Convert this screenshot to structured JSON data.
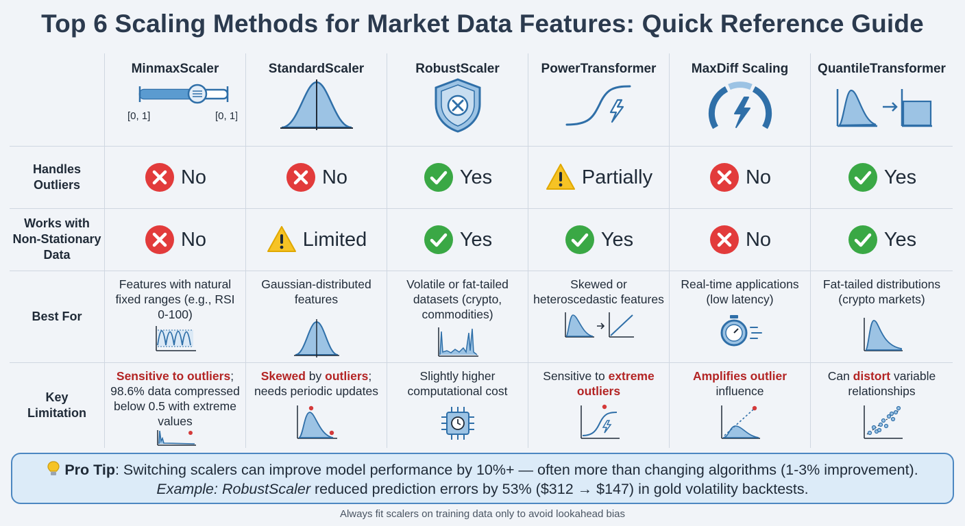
{
  "title": "Top 6 Scaling Methods for Market Data Features: Quick Reference Guide",
  "colors": {
    "accent_blue": "#2f6fa8",
    "fill_blue": "#9cc3e4",
    "no_red": "#e23b3b",
    "yes_green": "#3aa845",
    "warn_yellow": "#f6c325",
    "highlight_red": "#b32424"
  },
  "row_labels": {
    "handles_outliers": "Handles\nOutliers",
    "non_stationary": "Works with\nNon-Stationary\nData",
    "best_for": "Best For",
    "limitation": "Key\nLimitation"
  },
  "scalers": [
    {
      "name": "MinmaxScaler",
      "icon": "slider-icon",
      "icon_labels": [
        "[0, 1]",
        "[0, 1]"
      ],
      "outliers": {
        "status": "no",
        "text": "No"
      },
      "nonstationary": {
        "status": "no",
        "text": "No"
      },
      "best_for": "Features with natural fixed ranges (e.g., RSI 0-100)",
      "best_icon": "oscillator-chart-icon",
      "limitation": {
        "pre": "",
        "red1": "Sensitive to outliers",
        "mid": "; 98.6% data compressed below 0.5 with extreme values",
        "red2": "",
        "post": ""
      },
      "limit_icon": "compressed-spike-chart-icon"
    },
    {
      "name": "StandardScaler",
      "icon": "bell-curve-icon",
      "outliers": {
        "status": "no",
        "text": "No"
      },
      "nonstationary": {
        "status": "warn",
        "text": "Limited"
      },
      "best_for": "Gaussian-distributed features",
      "best_icon": "bell-curve-icon",
      "limitation": {
        "pre": "",
        "red1": "Skewed",
        "mid": " by ",
        "red2": "outliers",
        "post": "; needs periodic updates"
      },
      "limit_icon": "skewed-curve-outlier-icon"
    },
    {
      "name": "RobustScaler",
      "icon": "shield-icon",
      "outliers": {
        "status": "yes",
        "text": "Yes"
      },
      "nonstationary": {
        "status": "yes",
        "text": "Yes"
      },
      "best_for": "Volatile or fat-tailed datasets (crypto, commodities)",
      "best_icon": "volatile-spike-chart-icon",
      "limitation": {
        "pre": "Slightly higher computational cost",
        "red1": "",
        "mid": "",
        "red2": "",
        "post": ""
      },
      "limit_icon": "cpu-chip-icon"
    },
    {
      "name": "PowerTransformer",
      "icon": "s-curve-lightning-icon",
      "outliers": {
        "status": "warn",
        "text": "Partially"
      },
      "nonstationary": {
        "status": "yes",
        "text": "Yes"
      },
      "best_for": "Skewed or heteroscedastic features",
      "best_icon": "skew-to-linear-icon",
      "limitation": {
        "pre": "Sensitive to ",
        "red1": "extreme outliers",
        "mid": "",
        "red2": "",
        "post": ""
      },
      "limit_icon": "s-curve-outlier-icon"
    },
    {
      "name": "MaxDiff Scaling",
      "icon": "speedometer-icon",
      "outliers": {
        "status": "no",
        "text": "No"
      },
      "nonstationary": {
        "status": "no",
        "text": "No"
      },
      "best_for": "Real-time applications (low latency)",
      "best_icon": "stopwatch-icon",
      "limitation": {
        "pre": "",
        "red1": "Amplifies outlier",
        "mid": " influence",
        "red2": "",
        "post": ""
      },
      "limit_icon": "amplified-outlier-icon"
    },
    {
      "name": "QuantileTransformer",
      "icon": "distribution-to-uniform-icon",
      "outliers": {
        "status": "yes",
        "text": "Yes"
      },
      "nonstationary": {
        "status": "yes",
        "text": "Yes"
      },
      "best_for": "Fat-tailed distributions (crypto markets)",
      "best_icon": "fat-tail-curve-icon",
      "limitation": {
        "pre": "Can ",
        "red1": "distort",
        "mid": " variable relationships",
        "red2": "",
        "post": ""
      },
      "limit_icon": "scatter-plot-icon"
    }
  ],
  "tip": {
    "icon": "lightbulb-icon",
    "label": "Pro Tip",
    "line1": ": Switching scalers can improve model performance by 10%+ — often more than changing algorithms (1-3% improvement).",
    "example_label": "Example: RobustScaler",
    "line2": " reduced prediction errors by 53% ($312 → $147) in gold volatility backtests."
  },
  "footer": "Always fit scalers on training data only to avoid lookahead bias"
}
